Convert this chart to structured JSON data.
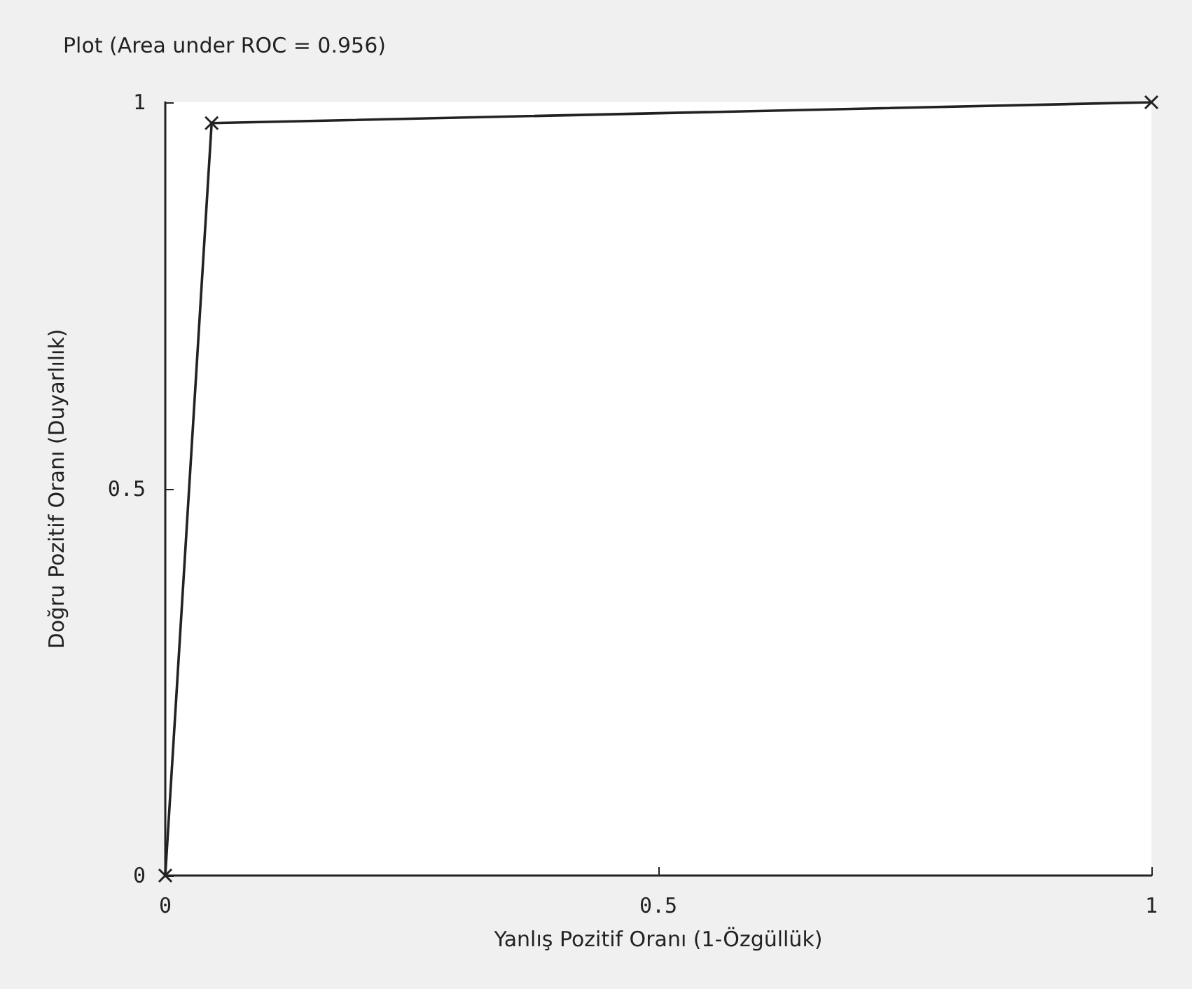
{
  "chart_data": {
    "type": "line",
    "title": "Plot (Area under ROC = 0.956)",
    "xlabel": "Yanlış Pozitif Oranı (1-Özgüllük)",
    "ylabel": "Doğru Pozitif Oranı (Duyarlılık)",
    "x": [
      0,
      0.047,
      1
    ],
    "series": [
      {
        "color": "#222222",
        "values": [
          0,
          0.973,
          1
        ]
      }
    ],
    "xlim": [
      0,
      1
    ],
    "xticks": [
      0,
      0.5,
      1
    ],
    "ylim": [
      0,
      1
    ],
    "yticks": [
      0,
      0.5,
      1
    ],
    "grid": false,
    "marker": "cross",
    "line_style": "solid"
  }
}
